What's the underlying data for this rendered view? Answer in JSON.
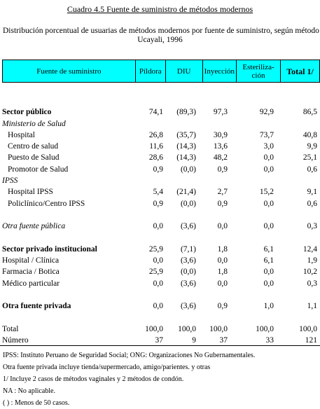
{
  "title": "Cuadro 4.5   Fuente de suministro de métodos modernos",
  "subtitle_line1": "Distribución porcentual de usuarias de métodos modernos por fuente de suministro, según método",
  "subtitle_line2": "Ucayali, 1996",
  "columns": {
    "source": "Fuente de suministro",
    "pill": "Píldora",
    "iud": "DIU",
    "injection": "Inyección",
    "sterilization": "Esteriliza-ción",
    "total": "Total  1/"
  },
  "rows": [
    {
      "label": "",
      "values": [
        "",
        "",
        "",
        "",
        ""
      ]
    },
    {
      "label": "Sector público",
      "values": [
        "74,1",
        "(89,3)",
        "97,3",
        "92,9",
        "86,5"
      ]
    },
    {
      "label": "Ministerio de Salud",
      "values": [
        "",
        "",
        "",
        "",
        ""
      ]
    },
    {
      "label": "Hospital",
      "values": [
        "26,8",
        "(35,7)",
        "30,9",
        "73,7",
        "40,8"
      ]
    },
    {
      "label": "Centro de salud",
      "values": [
        "11,6",
        "(14,3)",
        "13,6",
        "3,0",
        "9,9"
      ]
    },
    {
      "label": "Puesto de Salud",
      "values": [
        "28,6",
        "(14,3)",
        "48,2",
        "0,0",
        "25,1"
      ]
    },
    {
      "label": "Promotor de Salud",
      "values": [
        "0,9",
        "(0,0)",
        "0,9",
        "0,0",
        "0,6"
      ]
    },
    {
      "label": "IPSS",
      "values": [
        "",
        "",
        "",
        "",
        ""
      ]
    },
    {
      "label": "Hospital IPSS",
      "values": [
        "5,4",
        "(21,4)",
        "2,7",
        "15,2",
        "9,1"
      ]
    },
    {
      "label": "Policlínico/Centro IPSS",
      "values": [
        "0,9",
        "(0,0)",
        "0,9",
        "0,0",
        "0,6"
      ]
    },
    {
      "label": "",
      "values": [
        "",
        "",
        "",
        "",
        ""
      ]
    },
    {
      "label": "Otra fuente pública",
      "values": [
        "0,0",
        "(3,6)",
        "0,0",
        "0,0",
        "0,3"
      ]
    },
    {
      "label": "",
      "values": [
        "",
        "",
        "",
        "",
        ""
      ]
    },
    {
      "label": "Sector privado institucional",
      "values": [
        "25,9",
        "(7,1)",
        "1,8",
        "6,1",
        "12,4"
      ]
    },
    {
      "label": "Hospital / Clínica",
      "values": [
        "0,0",
        "(3,6)",
        "0,0",
        "6,1",
        "1,9"
      ]
    },
    {
      "label": "Farmacia / Botica",
      "values": [
        "25,9",
        "(0,0)",
        "1,8",
        "0,0",
        "10,2"
      ]
    },
    {
      "label": "Médico particular",
      "values": [
        "0,0",
        "(3,6)",
        "0,0",
        "0,0",
        "0,3"
      ]
    },
    {
      "label": "",
      "values": [
        "",
        "",
        "",
        "",
        ""
      ]
    },
    {
      "label": "Otra fuente privada",
      "values": [
        "0,0",
        "(3,6)",
        "0,9",
        "1,0",
        "1,1"
      ]
    },
    {
      "label": "",
      "values": [
        "",
        "",
        "",
        "",
        ""
      ]
    },
    {
      "label": "Total",
      "values": [
        "100,0",
        "100,0",
        "100,0",
        "100,0",
        "100,0"
      ]
    },
    {
      "label": "Número",
      "values": [
        "37",
        "9",
        "37",
        "33",
        "121"
      ]
    }
  ],
  "notes": [
    "IPSS: Instituto Peruano de Seguridad Social; ONG: Organizaciones No Gubernamentales.",
    "Otra fuente privada incluye tienda/supermercado, amigo/parientes. y otras",
    "1/ Incluye 2 casos de métodos vaginales y 2 métodos de condón.",
    "NA : No aplicable.",
    "( ) : Menos de 50 casos."
  ]
}
